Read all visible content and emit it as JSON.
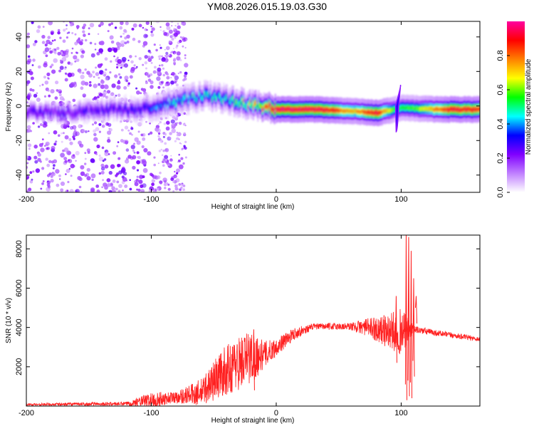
{
  "page_title": "YM08.2026.015.19.03.G30",
  "chart_data": [
    {
      "id": "spectrogram",
      "type": "heatmap",
      "title": "YM08.2026.015.19.03.G30",
      "xlabel": "Height of straight line (km)",
      "ylabel": "Frequency (Hz)",
      "xlim": [
        -200,
        163
      ],
      "ylim": [
        -50,
        49
      ],
      "xticks": [
        -200,
        -100,
        0,
        100
      ],
      "yticks": [
        -40,
        -20,
        0,
        20,
        40
      ],
      "colorbar": {
        "label": "Normalized spectral amplitude",
        "range": [
          0,
          1
        ],
        "ticks": [
          "0.0",
          "0.2",
          "0.4",
          "0.6",
          "0.8"
        ],
        "colors": [
          "#ffffff",
          "#c080ff",
          "#8000ff",
          "#0000ff",
          "#00ffff",
          "#00ff00",
          "#ffff00",
          "#ff8000",
          "#ff0000",
          "#ff00a0"
        ]
      },
      "ridge": [
        {
          "x": -200,
          "f": -3
        },
        {
          "x": -170,
          "f": -4
        },
        {
          "x": -140,
          "f": -2
        },
        {
          "x": -110,
          "f": -2
        },
        {
          "x": -90,
          "f": 1
        },
        {
          "x": -70,
          "f": 4
        },
        {
          "x": -55,
          "f": 6
        },
        {
          "x": -40,
          "f": 4
        },
        {
          "x": -25,
          "f": 1
        },
        {
          "x": -10,
          "f": 0
        },
        {
          "x": 0,
          "f": -2
        },
        {
          "x": 30,
          "f": -2
        },
        {
          "x": 60,
          "f": -3
        },
        {
          "x": 80,
          "f": -4
        },
        {
          "x": 95,
          "f": -2
        },
        {
          "x": 100,
          "f": -1
        },
        {
          "x": 130,
          "f": -2
        },
        {
          "x": 163,
          "f": -2
        }
      ],
      "ridge_amplitude": [
        {
          "x": -200,
          "a": 0.2
        },
        {
          "x": -110,
          "a": 0.25
        },
        {
          "x": -80,
          "a": 0.4
        },
        {
          "x": -40,
          "a": 0.45
        },
        {
          "x": -15,
          "a": 0.75
        },
        {
          "x": 0,
          "a": 0.95
        },
        {
          "x": 40,
          "a": 0.9
        },
        {
          "x": 60,
          "a": 0.7
        },
        {
          "x": 80,
          "a": 0.9
        },
        {
          "x": 95,
          "a": 0.5
        },
        {
          "x": 110,
          "a": 0.55
        },
        {
          "x": 140,
          "a": 0.9
        },
        {
          "x": 163,
          "a": 0.85
        }
      ],
      "spike": {
        "x": 97,
        "f_min": -15,
        "f_max": 12
      }
    },
    {
      "id": "snr",
      "type": "line",
      "title": "",
      "xlabel": "Height of straight line (km)",
      "ylabel": "SNR (10 * v/v)",
      "xlim": [
        -200,
        163
      ],
      "ylim": [
        0,
        8700
      ],
      "xticks": [
        -200,
        -100,
        0,
        100
      ],
      "yticks": [
        2000,
        4000,
        6000,
        8000
      ],
      "color": "#ff2020",
      "envelope": [
        {
          "x": -200,
          "base": 80,
          "amp": 60
        },
        {
          "x": -120,
          "base": 120,
          "amp": 100
        },
        {
          "x": -100,
          "base": 300,
          "amp": 400
        },
        {
          "x": -80,
          "base": 450,
          "amp": 300
        },
        {
          "x": -60,
          "base": 700,
          "amp": 700
        },
        {
          "x": -45,
          "base": 1600,
          "amp": 1200
        },
        {
          "x": -30,
          "base": 2200,
          "amp": 1400
        },
        {
          "x": -20,
          "base": 2500,
          "amp": 1400
        },
        {
          "x": -10,
          "base": 2600,
          "amp": 700
        },
        {
          "x": 0,
          "base": 3000,
          "amp": 450
        },
        {
          "x": 15,
          "base": 3700,
          "amp": 300
        },
        {
          "x": 30,
          "base": 4050,
          "amp": 150
        },
        {
          "x": 60,
          "base": 4050,
          "amp": 200
        },
        {
          "x": 75,
          "base": 4000,
          "amp": 500
        },
        {
          "x": 90,
          "base": 3800,
          "amp": 900
        },
        {
          "x": 100,
          "base": 3800,
          "amp": 1200
        },
        {
          "x": 110,
          "base": 3900,
          "amp": 200
        },
        {
          "x": 130,
          "base": 3700,
          "amp": 150
        },
        {
          "x": 163,
          "base": 3400,
          "amp": 120
        }
      ],
      "spikes": [
        {
          "x": 104,
          "top": 8700,
          "bottom": 300
        },
        {
          "x": 106,
          "top": 8600,
          "bottom": 500
        },
        {
          "x": 108,
          "top": 7900,
          "bottom": 400
        },
        {
          "x": 110,
          "top": 6500,
          "bottom": 1500
        },
        {
          "x": 112,
          "top": 5600,
          "bottom": 4200
        },
        {
          "x": 96,
          "top": 5600,
          "bottom": 2200
        },
        {
          "x": -18,
          "top": 3900,
          "bottom": 800
        }
      ]
    }
  ]
}
